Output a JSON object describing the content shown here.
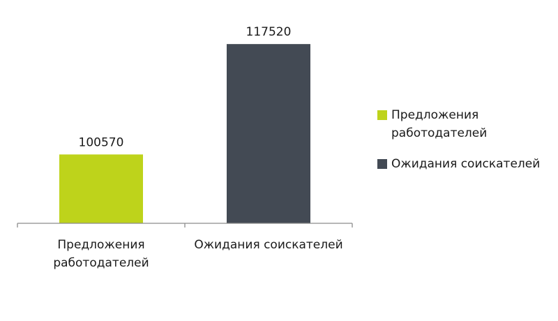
{
  "chart_data": {
    "type": "bar",
    "categories": [
      "Предложения работодателей",
      "Ожидания соискателей"
    ],
    "series": [
      {
        "name": "Предложения работодателей",
        "color": "#bed31b",
        "values": [
          100570,
          null
        ]
      },
      {
        "name": "Ожидания соискателей",
        "color": "#434a54",
        "values": [
          null,
          117520
        ]
      }
    ],
    "ylim": [
      90000,
      120000
    ],
    "legend": "right"
  }
}
